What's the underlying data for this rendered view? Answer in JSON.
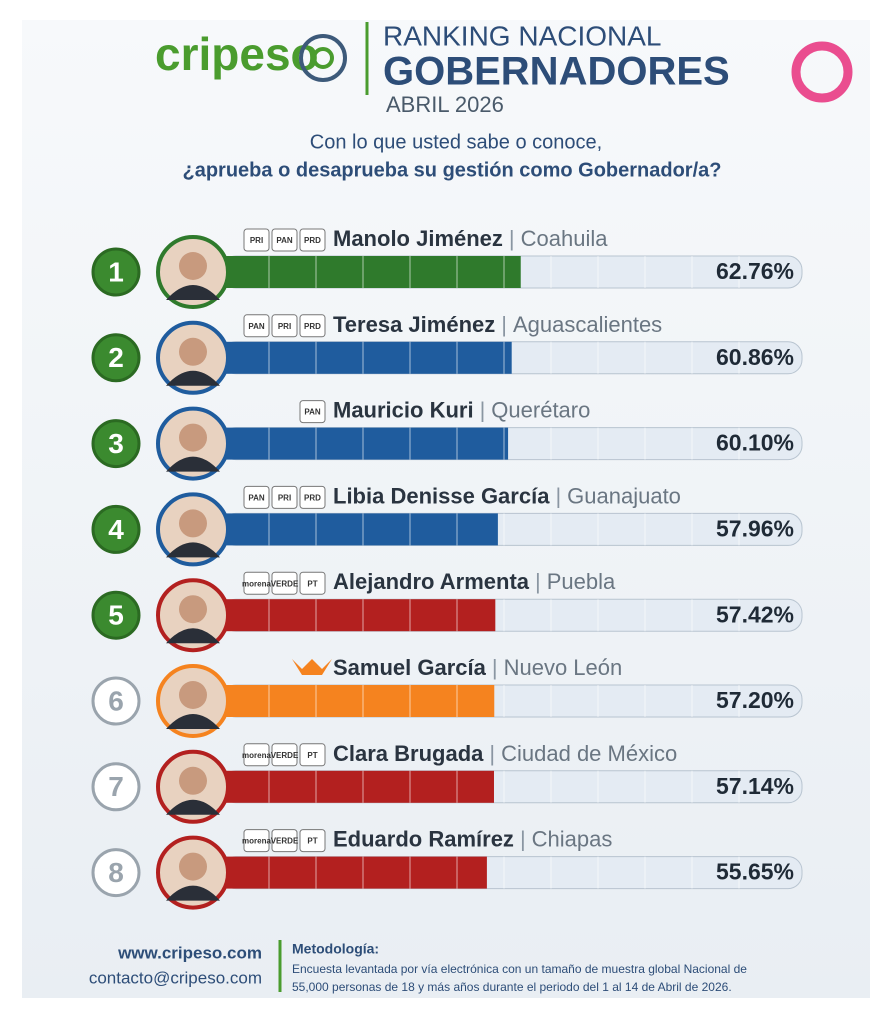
{
  "header": {
    "logo": "cripeso",
    "kicker": "RANKING NACIONAL",
    "title": "GOBERNADORES",
    "date": "ABRIL 2026"
  },
  "question": [
    "Con lo que usted sabe o conoce,",
    "¿aprueba o desaprueba su gestión como Gobernador/a?"
  ],
  "chart_data": {
    "type": "bar",
    "orientation": "horizontal",
    "ranks": [
      1,
      2,
      3,
      4,
      5,
      6,
      7,
      8
    ],
    "rank_colors": [
      "#3b8a2f",
      "#3b8a2f",
      "#3b8a2f",
      "#3b8a2f",
      "#3b8a2f",
      "#ffffff",
      "#ffffff",
      "#ffffff"
    ],
    "categories": [
      "Manolo Jiménez",
      "Teresa Jiménez",
      "Mauricio Kuri",
      "Libia Denisse García",
      "Alejandro Armenta",
      "Samuel García",
      "Clara Brugada",
      "Eduardo Ramírez"
    ],
    "regions": [
      "Coahuila",
      "Aguascalientes",
      "Querétaro",
      "Guanajuato",
      "Puebla",
      "Nuevo León",
      "Ciudad de México",
      "Chiapas"
    ],
    "parties": [
      [
        "PRI",
        "PAN",
        "PRD"
      ],
      [
        "PAN",
        "PRI",
        "PRD"
      ],
      [
        "PAN"
      ],
      [
        "PAN",
        "PRI",
        "PRD"
      ],
      [
        "morena",
        "VERDE",
        "PT"
      ],
      [],
      [
        "morena",
        "VERDE",
        "PT"
      ],
      [
        "morena",
        "VERDE",
        "PT"
      ]
    ],
    "values": [
      62.76,
      60.86,
      60.1,
      57.96,
      57.42,
      57.2,
      57.14,
      55.65
    ],
    "value_labels": [
      "62.76%",
      "60.86%",
      "60.10%",
      "57.96%",
      "57.42%",
      "57.20%",
      "57.14%",
      "55.65%"
    ],
    "colors": [
      "#2f7a2c",
      "#1f5c9e",
      "#1f5c9e",
      "#1f5c9e",
      "#b3201f",
      "#f5831f",
      "#b3201f",
      "#b3201f"
    ],
    "xlim": [
      0,
      100
    ]
  },
  "footer": {
    "website": "www.cripeso.com",
    "email": "contacto@cripeso.com",
    "method_title": "Metodología:",
    "method_text": [
      "Encuesta levantada por vía electrónica con un tamaño de muestra global Nacional de",
      "55,000 personas de 18 y más años durante el periodo del 1 al 14 de Abril de 2026."
    ]
  }
}
